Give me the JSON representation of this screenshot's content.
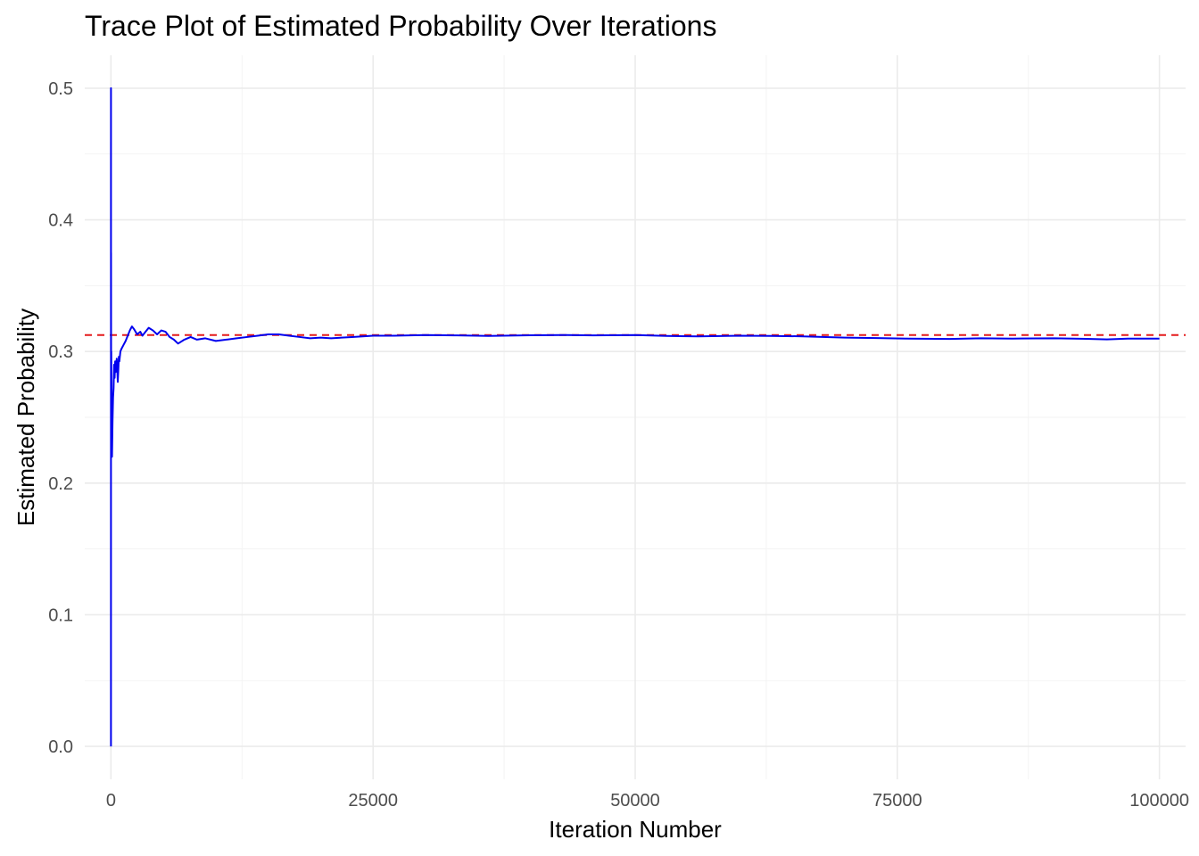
{
  "chart_data": {
    "type": "line",
    "title": "Trace Plot of Estimated Probability Over Iterations",
    "xlabel": "Iteration Number",
    "ylabel": "Estimated Probability",
    "xlim": [
      -2500,
      102500
    ],
    "ylim": [
      -0.025,
      0.525
    ],
    "x_ticks": [
      0,
      25000,
      50000,
      75000,
      100000
    ],
    "x_tick_labels": [
      "0",
      "25000",
      "50000",
      "75000",
      "100000"
    ],
    "y_ticks": [
      0.0,
      0.1,
      0.2,
      0.3,
      0.4,
      0.5
    ],
    "y_tick_labels": [
      "0.0",
      "0.1",
      "0.2",
      "0.3",
      "0.4",
      "0.5"
    ],
    "grid": true,
    "legend": "none",
    "reference_line": {
      "y": 0.3125,
      "color": "#e41a1c",
      "style": "dashed"
    },
    "series": [
      {
        "color": "#0000ee",
        "x": [
          1,
          2,
          4,
          8,
          15,
          30,
          60,
          100,
          150,
          200,
          250,
          300,
          350,
          400,
          450,
          500,
          550,
          600,
          650,
          700,
          750,
          800,
          900,
          1000,
          1200,
          1400,
          1600,
          1800,
          2000,
          2200,
          2500,
          2800,
          3000,
          3300,
          3600,
          4000,
          4400,
          4800,
          5200,
          5600,
          6000,
          6400,
          7000,
          7600,
          8200,
          9000,
          10000,
          11000,
          12000,
          13000,
          14000,
          15000,
          16000,
          17000,
          18000,
          19000,
          20000,
          21000,
          22000,
          23000,
          24000,
          25000,
          27000,
          30000,
          33000,
          36000,
          40000,
          43000,
          46000,
          50000,
          53000,
          56000,
          60000,
          63000,
          66000,
          70000,
          73000,
          76000,
          80000,
          83000,
          86000,
          90000,
          93000,
          95000,
          97000,
          100000
        ],
        "y": [
          0.0,
          0.5,
          0.25,
          0.375,
          0.2667,
          0.3,
          0.25,
          0.22,
          0.2467,
          0.265,
          0.272,
          0.29,
          0.28,
          0.2925,
          0.2844,
          0.29,
          0.2945,
          0.2867,
          0.2769,
          0.2857,
          0.296,
          0.2925,
          0.3,
          0.302,
          0.305,
          0.308,
          0.312,
          0.316,
          0.319,
          0.317,
          0.313,
          0.315,
          0.312,
          0.315,
          0.318,
          0.316,
          0.313,
          0.316,
          0.315,
          0.311,
          0.309,
          0.306,
          0.309,
          0.311,
          0.309,
          0.31,
          0.308,
          0.309,
          0.31,
          0.311,
          0.312,
          0.313,
          0.313,
          0.312,
          0.311,
          0.31,
          0.3105,
          0.31,
          0.3105,
          0.311,
          0.3115,
          0.312,
          0.312,
          0.3125,
          0.3122,
          0.3118,
          0.3123,
          0.3125,
          0.3122,
          0.3125,
          0.3118,
          0.3115,
          0.312,
          0.3118,
          0.3115,
          0.3105,
          0.3102,
          0.3098,
          0.3095,
          0.31,
          0.3098,
          0.31,
          0.3096,
          0.3092,
          0.3098,
          0.3098
        ]
      }
    ]
  }
}
